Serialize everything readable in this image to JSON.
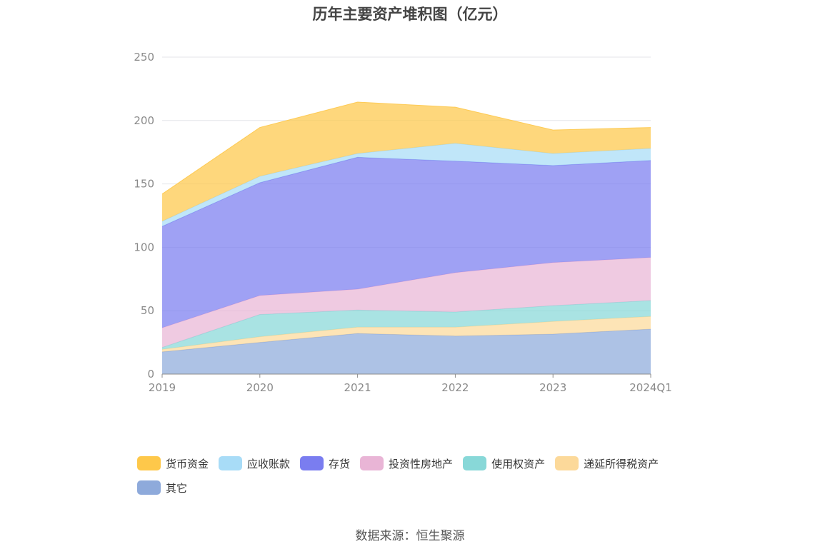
{
  "chart_data": {
    "type": "area",
    "stacked": true,
    "title": "历年主要资产堆积图（亿元）",
    "categories": [
      "2019",
      "2020",
      "2021",
      "2022",
      "2023",
      "2024Q1"
    ],
    "ylim": [
      0,
      250
    ],
    "yticks": [
      "0",
      "50",
      "100",
      "150",
      "200",
      "250"
    ],
    "grid": true,
    "legend_position": "bottom-left",
    "series": [
      {
        "name": "其它",
        "color": "#8eaadb",
        "values": [
          17.5,
          25,
          32,
          30,
          31.5,
          35.5
        ]
      },
      {
        "name": "递延所得税资产",
        "color": "#fcd99a",
        "values": [
          2,
          4.5,
          5,
          7,
          10,
          10
        ]
      },
      {
        "name": "使用权资产",
        "color": "#88d8d8",
        "values": [
          1.5,
          17.5,
          13.5,
          12,
          12.5,
          12.5
        ]
      },
      {
        "name": "投资性房地产",
        "color": "#e9b5d6",
        "values": [
          15.5,
          15,
          16.5,
          31,
          34,
          34
        ]
      },
      {
        "name": "存货",
        "color": "#7a7df0",
        "values": [
          80,
          89,
          104,
          88,
          76.5,
          76.5
        ]
      },
      {
        "name": "应收账款",
        "color": "#a8dcf7",
        "values": [
          4,
          5,
          3,
          14,
          9.5,
          9.5
        ]
      },
      {
        "name": "货币资金",
        "color": "#fec84a",
        "values": [
          21.5,
          38.5,
          40.5,
          28.5,
          18.5,
          16.5
        ]
      }
    ]
  },
  "legend": {
    "items": [
      {
        "label": "货币资金",
        "color": "#fec84a"
      },
      {
        "label": "应收账款",
        "color": "#a8dcf7"
      },
      {
        "label": "存货",
        "color": "#7a7df0"
      },
      {
        "label": "投资性房地产",
        "color": "#e9b5d6"
      },
      {
        "label": "使用权资产",
        "color": "#88d8d8"
      },
      {
        "label": "递延所得税资产",
        "color": "#fcd99a"
      },
      {
        "label": "其它",
        "color": "#8eaadb"
      }
    ]
  },
  "source": "数据来源：恒生聚源"
}
